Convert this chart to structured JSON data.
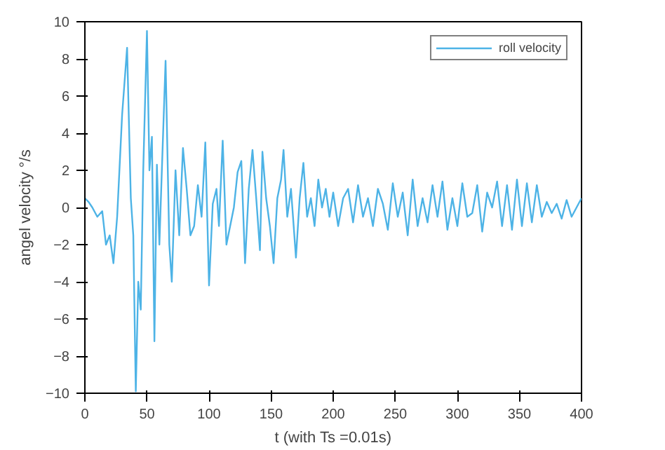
{
  "chart_data": {
    "type": "line",
    "xlabel": "t (with Ts =0.01s)",
    "ylabel": "angel velocity °/s",
    "xlim": [
      0,
      400
    ],
    "ylim": [
      -10,
      10
    ],
    "xticks": [
      0,
      50,
      100,
      150,
      200,
      250,
      300,
      350,
      400
    ],
    "yticks": [
      -10,
      -8,
      -6,
      -4,
      -2,
      0,
      2,
      4,
      6,
      8,
      10
    ],
    "grid": false,
    "legend": "top right",
    "series": [
      {
        "name": "roll velocity",
        "color": "#4db3e6",
        "x": [
          0,
          3,
          6,
          10,
          14,
          17,
          20,
          23,
          26,
          30,
          34,
          37,
          39,
          41,
          43,
          45,
          47,
          50,
          52,
          54,
          56,
          58,
          60,
          62,
          65,
          68,
          70,
          73,
          76,
          79,
          82,
          85,
          88,
          91,
          94,
          97,
          100,
          103,
          106,
          108,
          111,
          114,
          117,
          120,
          123,
          126,
          129,
          132,
          135,
          138,
          141,
          143,
          146,
          149,
          152,
          155,
          158,
          160,
          163,
          166,
          170,
          173,
          176,
          179,
          182,
          185,
          188,
          191,
          194,
          197,
          200,
          204,
          208,
          212,
          216,
          220,
          224,
          228,
          232,
          236,
          240,
          244,
          248,
          252,
          256,
          260,
          264,
          268,
          272,
          276,
          280,
          284,
          288,
          292,
          296,
          300,
          304,
          308,
          312,
          316,
          320,
          324,
          328,
          332,
          336,
          340,
          344,
          348,
          352,
          356,
          360,
          364,
          368,
          372,
          376,
          380,
          384,
          388,
          392,
          396,
          400
        ],
        "values": [
          0.5,
          0.3,
          0,
          -0.5,
          -0.2,
          -2,
          -1.5,
          -3,
          -0.5,
          5,
          8.6,
          0.5,
          -1.5,
          -9.9,
          -4,
          -5.5,
          2,
          9.5,
          2,
          3.8,
          -7.2,
          2.3,
          -2,
          2,
          7.9,
          -2,
          -4,
          2,
          -1.5,
          3.2,
          1,
          -1.5,
          -1,
          1.2,
          -0.5,
          3.5,
          -4.2,
          0.2,
          1,
          -1,
          3.6,
          -2,
          -1,
          0,
          1.9,
          2.5,
          -3,
          1,
          3.1,
          0.5,
          -2.3,
          3,
          0.5,
          -1,
          -3,
          0.5,
          1.5,
          3.1,
          -0.5,
          1,
          -2.7,
          0.5,
          2.4,
          -0.5,
          0.5,
          -1,
          1.5,
          0,
          1,
          -0.5,
          0.8,
          -1,
          0.5,
          1,
          -0.8,
          1.2,
          -0.5,
          0.5,
          -1,
          1,
          0.2,
          -1.2,
          1.3,
          -0.5,
          0.8,
          -1.5,
          1.5,
          -1,
          0.5,
          -0.8,
          1.2,
          -0.5,
          1.4,
          -1.2,
          0.5,
          -1,
          1.3,
          -0.5,
          -0.3,
          1.2,
          -1.3,
          0.8,
          0,
          1.4,
          -1,
          1.2,
          -1.2,
          1.5,
          -1,
          1.3,
          -0.8,
          1.2,
          -0.5,
          0.3,
          -0.3,
          0.2,
          -0.6,
          0.4,
          -0.5,
          0,
          0.5
        ]
      }
    ]
  }
}
